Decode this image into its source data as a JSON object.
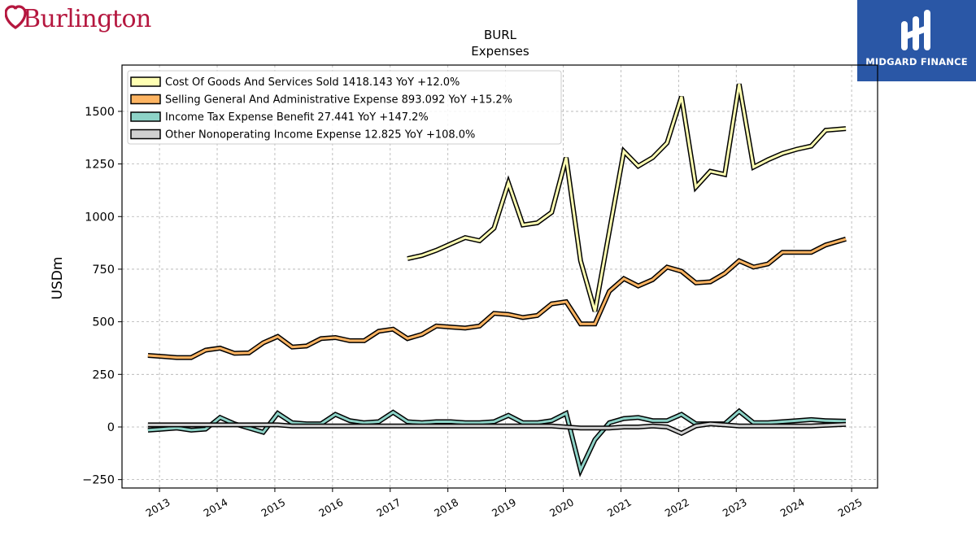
{
  "brand": {
    "left_logo_text": "Burlington",
    "right_logo_text": "MIDGARD FINANCE",
    "accent_left": "#b5173f",
    "accent_right": "#2a57a6"
  },
  "chart_data": {
    "type": "line",
    "title": "BURL",
    "subtitle": "Expenses",
    "ylabel": "USDm",
    "xlabel": "",
    "ylim": [
      -290,
      1720
    ],
    "xlim": [
      2012.35,
      2025.45
    ],
    "yticks": [
      -250,
      0,
      250,
      500,
      750,
      1000,
      1250,
      1500
    ],
    "ytick_labels": [
      "−250",
      "0",
      "250",
      "500",
      "750",
      "1000",
      "1250",
      "1500"
    ],
    "xticks": [
      2013,
      2014,
      2015,
      2016,
      2017,
      2018,
      2019,
      2020,
      2021,
      2022,
      2023,
      2024,
      2025
    ],
    "xtick_labels": [
      "2013",
      "2014",
      "2015",
      "2016",
      "2017",
      "2018",
      "2019",
      "2020",
      "2021",
      "2022",
      "2023",
      "2024",
      "2025"
    ],
    "grid": true,
    "legend_position": "top-left",
    "legend": [
      "Cost Of Goods And Services Sold  1418.143 YoY +12.0%",
      "Selling General And Administrative Expense  893.092 YoY +15.2%",
      "Income Tax Expense Benefit  27.441 YoY +147.2%",
      "Other Nonoperating Income Expense  12.825 YoY +108.0%"
    ],
    "series": [
      {
        "name": "Cost Of Goods And Services Sold",
        "color": "#ffffb3",
        "x": [
          2017.3,
          2017.55,
          2017.8,
          2018.05,
          2018.3,
          2018.55,
          2018.8,
          2019.05,
          2019.3,
          2019.55,
          2019.8,
          2020.05,
          2020.3,
          2020.55,
          2020.8,
          2021.05,
          2021.3,
          2021.55,
          2021.8,
          2022.05,
          2022.3,
          2022.55,
          2022.8,
          2023.05,
          2023.3,
          2023.55,
          2023.8,
          2024.05,
          2024.3,
          2024.55,
          2024.9
        ],
        "y": [
          800,
          815,
          840,
          870,
          900,
          885,
          945,
          1160,
          960,
          970,
          1020,
          1280,
          790,
          550,
          930,
          1310,
          1240,
          1280,
          1350,
          1570,
          1140,
          1215,
          1200,
          1630,
          1235,
          1270,
          1300,
          1320,
          1335,
          1410,
          1418.143
        ]
      },
      {
        "name": "Selling General And Administrative Expense",
        "color": "#fdb462",
        "x": [
          2012.8,
          2013.05,
          2013.3,
          2013.55,
          2013.8,
          2014.05,
          2014.3,
          2014.55,
          2014.8,
          2015.05,
          2015.3,
          2015.55,
          2015.8,
          2016.05,
          2016.3,
          2016.55,
          2016.8,
          2017.05,
          2017.3,
          2017.55,
          2017.8,
          2018.05,
          2018.3,
          2018.55,
          2018.8,
          2019.05,
          2019.3,
          2019.55,
          2019.8,
          2020.05,
          2020.3,
          2020.55,
          2020.8,
          2021.05,
          2021.3,
          2021.55,
          2021.8,
          2022.05,
          2022.3,
          2022.55,
          2022.8,
          2023.05,
          2023.3,
          2023.55,
          2023.8,
          2024.05,
          2024.3,
          2024.55,
          2024.9
        ],
        "y": [
          340,
          335,
          330,
          330,
          365,
          375,
          350,
          352,
          400,
          430,
          380,
          385,
          420,
          425,
          410,
          410,
          455,
          465,
          420,
          440,
          480,
          475,
          470,
          480,
          540,
          535,
          520,
          530,
          585,
          595,
          490,
          490,
          645,
          705,
          670,
          700,
          760,
          740,
          685,
          690,
          730,
          790,
          760,
          775,
          830,
          830,
          830,
          865,
          893.092
        ]
      },
      {
        "name": "Income Tax Expense Benefit",
        "color": "#8dd3c7",
        "x": [
          2012.8,
          2013.05,
          2013.3,
          2013.55,
          2013.8,
          2014.05,
          2014.3,
          2014.55,
          2014.8,
          2015.05,
          2015.3,
          2015.55,
          2015.8,
          2016.05,
          2016.3,
          2016.55,
          2016.8,
          2017.05,
          2017.3,
          2017.55,
          2017.8,
          2018.05,
          2018.3,
          2018.55,
          2018.8,
          2019.05,
          2019.3,
          2019.55,
          2019.8,
          2020.05,
          2020.3,
          2020.55,
          2020.8,
          2021.05,
          2021.3,
          2021.55,
          2021.8,
          2022.05,
          2022.3,
          2022.55,
          2022.8,
          2023.05,
          2023.3,
          2023.55,
          2023.8,
          2024.05,
          2024.3,
          2024.55,
          2024.9
        ],
        "y": [
          -15,
          -10,
          -5,
          -15,
          -10,
          45,
          15,
          -5,
          -25,
          65,
          20,
          15,
          15,
          60,
          30,
          20,
          25,
          70,
          25,
          20,
          25,
          25,
          20,
          20,
          25,
          55,
          20,
          20,
          30,
          65,
          -205,
          -60,
          20,
          40,
          45,
          30,
          30,
          60,
          15,
          15,
          15,
          75,
          20,
          20,
          25,
          30,
          35,
          30,
          27.441
        ]
      },
      {
        "name": "Other Nonoperating Income Expense",
        "color": "#d0d0d0",
        "x": [
          2012.8,
          2013.05,
          2013.3,
          2013.55,
          2013.8,
          2014.05,
          2014.3,
          2014.55,
          2014.8,
          2015.05,
          2015.3,
          2015.55,
          2015.8,
          2016.05,
          2016.3,
          2016.55,
          2016.8,
          2017.05,
          2017.3,
          2017.55,
          2017.8,
          2018.05,
          2018.3,
          2018.55,
          2018.8,
          2019.05,
          2019.3,
          2019.55,
          2019.8,
          2020.05,
          2020.3,
          2020.55,
          2020.8,
          2021.05,
          2021.3,
          2021.55,
          2021.8,
          2022.05,
          2022.3,
          2022.55,
          2022.8,
          2023.05,
          2023.3,
          2023.55,
          2023.8,
          2024.05,
          2024.3,
          2024.55,
          2024.9
        ],
        "y": [
          10,
          10,
          10,
          10,
          10,
          10,
          10,
          10,
          10,
          10,
          5,
          5,
          5,
          5,
          5,
          5,
          5,
          5,
          5,
          5,
          5,
          5,
          5,
          5,
          5,
          5,
          5,
          5,
          5,
          0,
          -5,
          -5,
          -5,
          0,
          0,
          5,
          0,
          -30,
          5,
          15,
          10,
          5,
          5,
          5,
          5,
          5,
          5,
          8,
          12.825
        ]
      }
    ]
  }
}
